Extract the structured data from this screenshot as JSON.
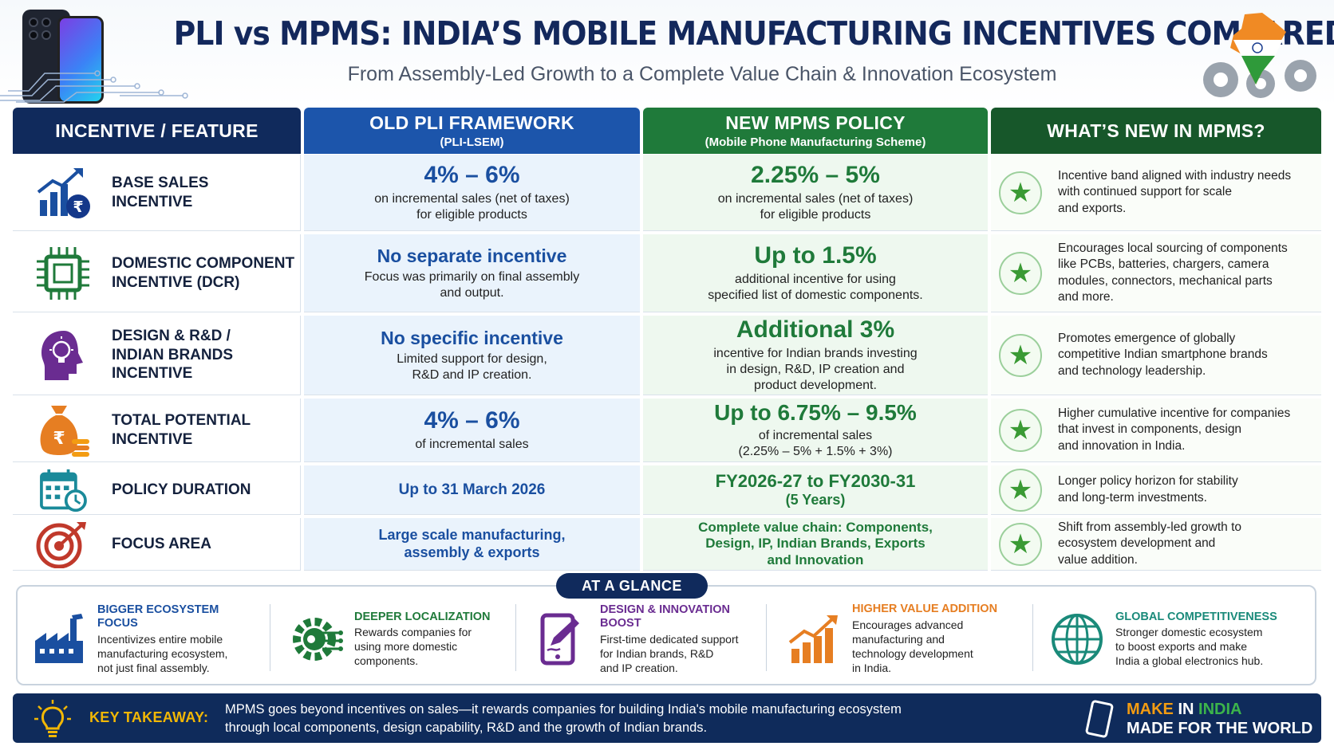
{
  "header": {
    "title": "PLI vs MPMS: INDIA’S MOBILE MANUFACTURING INCENTIVES COMPARED",
    "subtitle": "From Assembly-Led Growth to a Complete Value Chain & Innovation Ecosystem"
  },
  "table": {
    "headers": {
      "feature": "INCENTIVE / FEATURE",
      "old_main": "OLD PLI FRAMEWORK",
      "old_sub": "(PLI-LSEM)",
      "new_main": "NEW MPMS POLICY",
      "new_sub": "(Mobile Phone Manufacturing Scheme)",
      "whats_new": "WHAT’S NEW IN MPMS?"
    },
    "rows": [
      {
        "icon": "bar-chart-rupee-icon",
        "label": [
          "BASE SALES",
          "INCENTIVE"
        ],
        "old_value": "4% – 6%",
        "old_desc": [
          "on incremental sales (net of taxes)",
          "for eligible products"
        ],
        "new_value": "2.25% – 5%",
        "new_desc": [
          "on incremental sales (net of taxes)",
          "for eligible products"
        ],
        "whats_new": [
          "Incentive band aligned with industry needs",
          "with continued support for scale",
          "and exports."
        ]
      },
      {
        "icon": "chip-icon",
        "label": [
          "DOMESTIC COMPONENT",
          "INCENTIVE (DCR)"
        ],
        "old_value": "No separate incentive",
        "old_desc": [
          "Focus was primarily on final assembly",
          "and output."
        ],
        "new_value": "Up to 1.5%",
        "new_desc": [
          "additional incentive for using",
          "specified list of domestic components."
        ],
        "whats_new": [
          "Encourages local sourcing of components",
          "like PCBs, batteries, chargers, camera",
          "modules, connectors, mechanical parts",
          "and more."
        ]
      },
      {
        "icon": "head-lightbulb-icon",
        "label": [
          "DESIGN & R&D /",
          "INDIAN BRANDS",
          "INCENTIVE"
        ],
        "old_value": "No specific incentive",
        "old_desc": [
          "Limited support for design,",
          "R&D and IP creation."
        ],
        "new_value": "Additional 3%",
        "new_desc": [
          "incentive for Indian brands investing",
          "in design, R&D, IP creation and",
          "product development."
        ],
        "whats_new": [
          "Promotes emergence of globally",
          "competitive Indian smartphone brands",
          "and technology leadership."
        ]
      },
      {
        "icon": "money-bag-icon",
        "label": [
          "TOTAL POTENTIAL",
          "INCENTIVE"
        ],
        "old_value": "4% – 6%",
        "old_desc": [
          "of incremental sales"
        ],
        "new_value": "Up to 6.75% – 9.5%",
        "new_desc": [
          "of incremental sales",
          "(2.25% – 5% + 1.5% + 3%)"
        ],
        "whats_new": [
          "Higher cumulative incentive for companies",
          "that invest in components, design",
          "and innovation in India."
        ]
      },
      {
        "icon": "calendar-clock-icon",
        "label": [
          "POLICY DURATION"
        ],
        "old_value": "Up to 31 March 2026",
        "old_desc": [],
        "new_value": "FY2026-27 to FY2030-31",
        "new_desc": [
          "(5 Years)"
        ],
        "whats_new": [
          "Longer policy horizon for stability",
          "and long-term investments."
        ]
      },
      {
        "icon": "target-icon",
        "label": [
          "FOCUS AREA"
        ],
        "old_value": "Large scale manufacturing,\nassembly & exports",
        "old_desc": [],
        "new_value": "Complete value chain: Components,\nDesign, IP, Indian Brands, Exports\nand Innovation",
        "new_desc": [],
        "whats_new": [
          "Shift from assembly-led growth to",
          "ecosystem development and",
          "value addition."
        ]
      }
    ]
  },
  "glance": {
    "label": "AT A GLANCE",
    "items": [
      {
        "icon": "factory-icon",
        "title": "BIGGER ECOSYSTEM\nFOCUS",
        "desc": "Incentivizes entire mobile\nmanufacturing ecosystem,\nnot just final assembly.",
        "color": "#1a4fa0"
      },
      {
        "icon": "gear-circuit-icon",
        "title": "DEEPER LOCALIZATION",
        "desc": "Rewards companies for\nusing more domestic\ncomponents.",
        "color": "#1f7a3a"
      },
      {
        "icon": "tablet-pen-icon",
        "title": "DESIGN & INNOVATION\nBOOST",
        "desc": "First-time dedicated support\nfor Indian brands, R&D\nand IP creation.",
        "color": "#6a2c91"
      },
      {
        "icon": "growth-chart-icon",
        "title": "HIGHER VALUE ADDITION",
        "desc": "Encourages advanced\nmanufacturing and\ntechnology development\nin India.",
        "color": "#e67e22"
      },
      {
        "icon": "globe-icon",
        "title": "GLOBAL COMPETITIVENESS",
        "desc": "Stronger domestic ecosystem\nto boost exports and make\nIndia a global electronics hub.",
        "color": "#1a8a7a"
      }
    ]
  },
  "footer": {
    "label": "KEY TAKEAWAY:",
    "text": "MPMS goes beyond incentives on sales—it rewards companies for building India's mobile manufacturing ecosystem\nthrough local components, design capability, R&D and the growth of Indian brands.",
    "make": "MAKE",
    "in": "IN",
    "india": "INDIA",
    "world": "MADE FOR THE WORLD"
  },
  "colors": {
    "navy": "#102a5c",
    "blue": "#1c55ab",
    "green": "#1f7a3a",
    "dark_green": "#17572a",
    "gold": "#f2b705"
  }
}
